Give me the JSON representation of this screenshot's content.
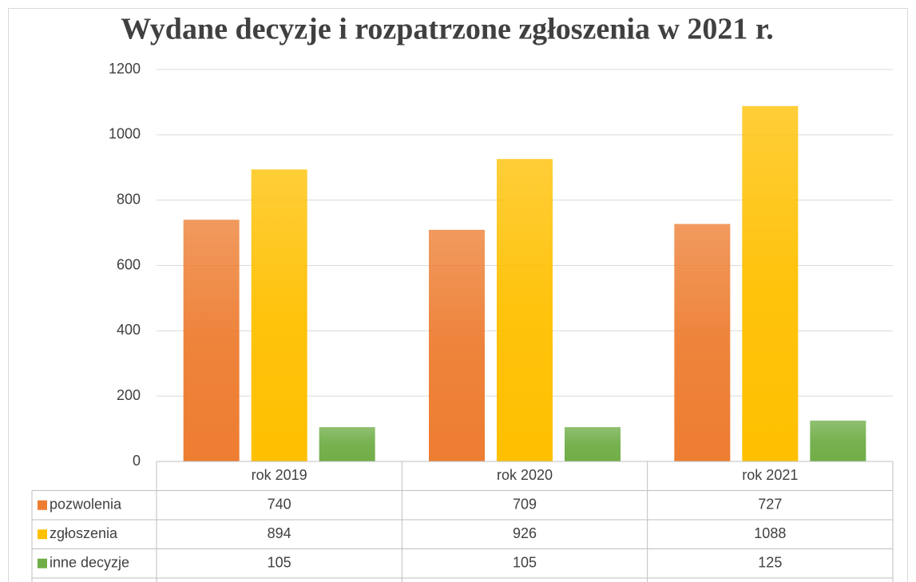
{
  "chart_data": {
    "type": "bar",
    "title": "Wydane decyzje i rozpatrzone zgłoszenia w 2021 r.",
    "categories": [
      "rok 2019",
      "rok 2020",
      "rok 2021"
    ],
    "series": [
      {
        "name": "pozwolenia",
        "color": "#ed7d31",
        "values": [
          740,
          709,
          727
        ]
      },
      {
        "name": "zgłoszenia",
        "color": "#ffc000",
        "values": [
          894,
          926,
          1088
        ]
      },
      {
        "name": "inne decyzje",
        "color": "#70ad47",
        "values": [
          105,
          105,
          125
        ]
      }
    ],
    "ylim": [
      0,
      1200
    ],
    "yticks": [
      0,
      200,
      400,
      600,
      800,
      1000,
      1200
    ],
    "grid": true
  }
}
